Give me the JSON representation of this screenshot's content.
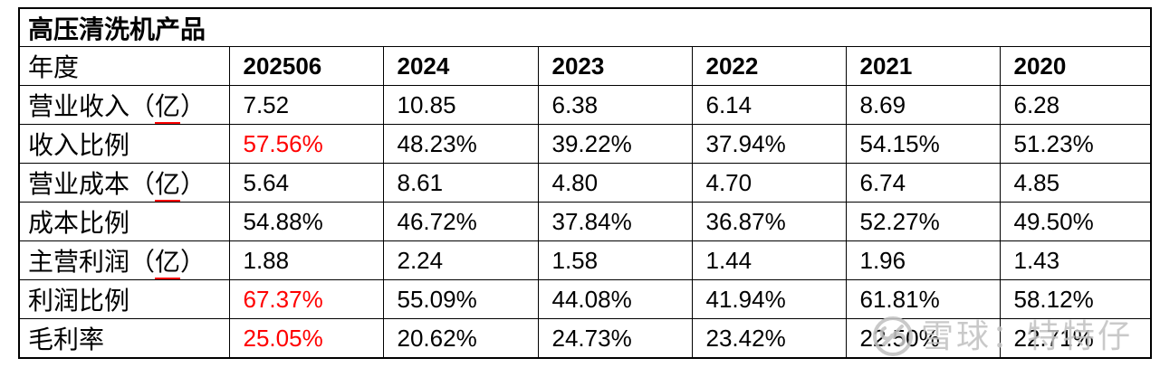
{
  "document": {
    "title": "高压清洗机产品"
  },
  "table": {
    "header": {
      "year_label": "年度",
      "year_columns": [
        "202506",
        "2024",
        "2023",
        "2022",
        "2021",
        "2020"
      ]
    },
    "rows": [
      {
        "label_pre": "营业收入（",
        "label_underline": "亿",
        "label_post": "）",
        "values": [
          "7.52",
          "10.85",
          "6.38",
          "6.14",
          "8.69",
          "6.28"
        ],
        "first_value_red": false
      },
      {
        "label_pre": "收入比例",
        "label_underline": "",
        "label_post": "",
        "values": [
          "57.56%",
          "48.23%",
          "39.22%",
          "37.94%",
          "54.15%",
          "51.23%"
        ],
        "first_value_red": true
      },
      {
        "label_pre": "营业成本（",
        "label_underline": "亿",
        "label_post": "）",
        "values": [
          "5.64",
          "8.61",
          "4.80",
          "4.70",
          "6.74",
          "4.85"
        ],
        "first_value_red": false
      },
      {
        "label_pre": "成本比例",
        "label_underline": "",
        "label_post": "",
        "values": [
          "54.88%",
          "46.72%",
          "37.84%",
          "36.87%",
          "52.27%",
          "49.50%"
        ],
        "first_value_red": false
      },
      {
        "label_pre": "主营利润（",
        "label_underline": "亿",
        "label_post": "）",
        "values": [
          "1.88",
          "2.24",
          "1.58",
          "1.44",
          "1.96",
          "1.43"
        ],
        "first_value_red": false
      },
      {
        "label_pre": "利润比例",
        "label_underline": "",
        "label_post": "",
        "values": [
          "67.37%",
          "55.09%",
          "44.08%",
          "41.94%",
          "61.81%",
          "58.12%"
        ],
        "first_value_red": true
      },
      {
        "label_pre": "毛利率",
        "label_underline": "",
        "label_post": "",
        "values": [
          "25.05%",
          "20.62%",
          "24.73%",
          "23.42%",
          "22.50%",
          "22.71%"
        ],
        "first_value_red": true
      }
    ]
  },
  "watermark": {
    "text": "雪球：特特仔",
    "logo": "xueqiu-snowball-logo"
  },
  "colors": {
    "highlight_red": "#ff0000",
    "underline_red": "#ff0000",
    "border_black": "#000000",
    "watermark_gray": "#c2c2c2"
  }
}
